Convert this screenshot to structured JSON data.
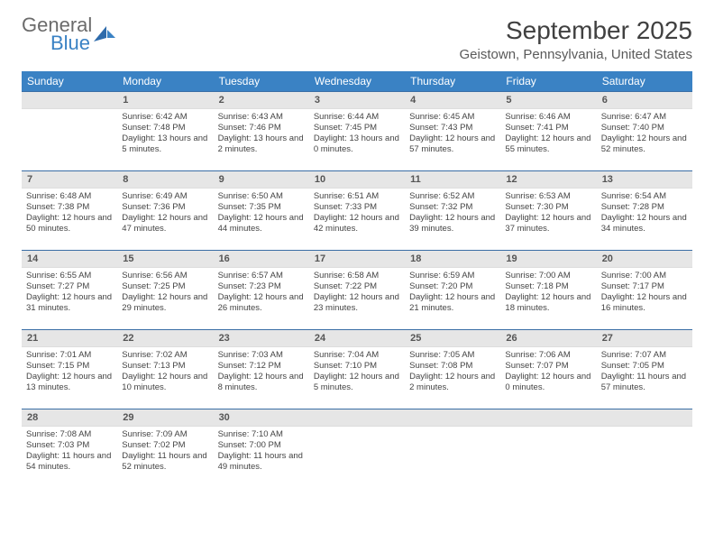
{
  "brand": {
    "word1": "General",
    "word2": "Blue"
  },
  "header": {
    "month_title": "September 2025",
    "location": "Geistown, Pennsylvania, United States"
  },
  "colors": {
    "header_bg": "#3a82c4",
    "header_text": "#ffffff",
    "daynum_bg": "#e6e6e6",
    "row_border": "#3a6ea5",
    "body_text": "#444444",
    "title_text": "#404040"
  },
  "day_headers": [
    "Sunday",
    "Monday",
    "Tuesday",
    "Wednesday",
    "Thursday",
    "Friday",
    "Saturday"
  ],
  "weeks": [
    [
      {
        "day": null
      },
      {
        "day": "1",
        "sunrise": "Sunrise: 6:42 AM",
        "sunset": "Sunset: 7:48 PM",
        "daylight": "Daylight: 13 hours and 5 minutes."
      },
      {
        "day": "2",
        "sunrise": "Sunrise: 6:43 AM",
        "sunset": "Sunset: 7:46 PM",
        "daylight": "Daylight: 13 hours and 2 minutes."
      },
      {
        "day": "3",
        "sunrise": "Sunrise: 6:44 AM",
        "sunset": "Sunset: 7:45 PM",
        "daylight": "Daylight: 13 hours and 0 minutes."
      },
      {
        "day": "4",
        "sunrise": "Sunrise: 6:45 AM",
        "sunset": "Sunset: 7:43 PM",
        "daylight": "Daylight: 12 hours and 57 minutes."
      },
      {
        "day": "5",
        "sunrise": "Sunrise: 6:46 AM",
        "sunset": "Sunset: 7:41 PM",
        "daylight": "Daylight: 12 hours and 55 minutes."
      },
      {
        "day": "6",
        "sunrise": "Sunrise: 6:47 AM",
        "sunset": "Sunset: 7:40 PM",
        "daylight": "Daylight: 12 hours and 52 minutes."
      }
    ],
    [
      {
        "day": "7",
        "sunrise": "Sunrise: 6:48 AM",
        "sunset": "Sunset: 7:38 PM",
        "daylight": "Daylight: 12 hours and 50 minutes."
      },
      {
        "day": "8",
        "sunrise": "Sunrise: 6:49 AM",
        "sunset": "Sunset: 7:36 PM",
        "daylight": "Daylight: 12 hours and 47 minutes."
      },
      {
        "day": "9",
        "sunrise": "Sunrise: 6:50 AM",
        "sunset": "Sunset: 7:35 PM",
        "daylight": "Daylight: 12 hours and 44 minutes."
      },
      {
        "day": "10",
        "sunrise": "Sunrise: 6:51 AM",
        "sunset": "Sunset: 7:33 PM",
        "daylight": "Daylight: 12 hours and 42 minutes."
      },
      {
        "day": "11",
        "sunrise": "Sunrise: 6:52 AM",
        "sunset": "Sunset: 7:32 PM",
        "daylight": "Daylight: 12 hours and 39 minutes."
      },
      {
        "day": "12",
        "sunrise": "Sunrise: 6:53 AM",
        "sunset": "Sunset: 7:30 PM",
        "daylight": "Daylight: 12 hours and 37 minutes."
      },
      {
        "day": "13",
        "sunrise": "Sunrise: 6:54 AM",
        "sunset": "Sunset: 7:28 PM",
        "daylight": "Daylight: 12 hours and 34 minutes."
      }
    ],
    [
      {
        "day": "14",
        "sunrise": "Sunrise: 6:55 AM",
        "sunset": "Sunset: 7:27 PM",
        "daylight": "Daylight: 12 hours and 31 minutes."
      },
      {
        "day": "15",
        "sunrise": "Sunrise: 6:56 AM",
        "sunset": "Sunset: 7:25 PM",
        "daylight": "Daylight: 12 hours and 29 minutes."
      },
      {
        "day": "16",
        "sunrise": "Sunrise: 6:57 AM",
        "sunset": "Sunset: 7:23 PM",
        "daylight": "Daylight: 12 hours and 26 minutes."
      },
      {
        "day": "17",
        "sunrise": "Sunrise: 6:58 AM",
        "sunset": "Sunset: 7:22 PM",
        "daylight": "Daylight: 12 hours and 23 minutes."
      },
      {
        "day": "18",
        "sunrise": "Sunrise: 6:59 AM",
        "sunset": "Sunset: 7:20 PM",
        "daylight": "Daylight: 12 hours and 21 minutes."
      },
      {
        "day": "19",
        "sunrise": "Sunrise: 7:00 AM",
        "sunset": "Sunset: 7:18 PM",
        "daylight": "Daylight: 12 hours and 18 minutes."
      },
      {
        "day": "20",
        "sunrise": "Sunrise: 7:00 AM",
        "sunset": "Sunset: 7:17 PM",
        "daylight": "Daylight: 12 hours and 16 minutes."
      }
    ],
    [
      {
        "day": "21",
        "sunrise": "Sunrise: 7:01 AM",
        "sunset": "Sunset: 7:15 PM",
        "daylight": "Daylight: 12 hours and 13 minutes."
      },
      {
        "day": "22",
        "sunrise": "Sunrise: 7:02 AM",
        "sunset": "Sunset: 7:13 PM",
        "daylight": "Daylight: 12 hours and 10 minutes."
      },
      {
        "day": "23",
        "sunrise": "Sunrise: 7:03 AM",
        "sunset": "Sunset: 7:12 PM",
        "daylight": "Daylight: 12 hours and 8 minutes."
      },
      {
        "day": "24",
        "sunrise": "Sunrise: 7:04 AM",
        "sunset": "Sunset: 7:10 PM",
        "daylight": "Daylight: 12 hours and 5 minutes."
      },
      {
        "day": "25",
        "sunrise": "Sunrise: 7:05 AM",
        "sunset": "Sunset: 7:08 PM",
        "daylight": "Daylight: 12 hours and 2 minutes."
      },
      {
        "day": "26",
        "sunrise": "Sunrise: 7:06 AM",
        "sunset": "Sunset: 7:07 PM",
        "daylight": "Daylight: 12 hours and 0 minutes."
      },
      {
        "day": "27",
        "sunrise": "Sunrise: 7:07 AM",
        "sunset": "Sunset: 7:05 PM",
        "daylight": "Daylight: 11 hours and 57 minutes."
      }
    ],
    [
      {
        "day": "28",
        "sunrise": "Sunrise: 7:08 AM",
        "sunset": "Sunset: 7:03 PM",
        "daylight": "Daylight: 11 hours and 54 minutes."
      },
      {
        "day": "29",
        "sunrise": "Sunrise: 7:09 AM",
        "sunset": "Sunset: 7:02 PM",
        "daylight": "Daylight: 11 hours and 52 minutes."
      },
      {
        "day": "30",
        "sunrise": "Sunrise: 7:10 AM",
        "sunset": "Sunset: 7:00 PM",
        "daylight": "Daylight: 11 hours and 49 minutes."
      },
      {
        "day": null
      },
      {
        "day": null
      },
      {
        "day": null
      },
      {
        "day": null
      }
    ]
  ]
}
